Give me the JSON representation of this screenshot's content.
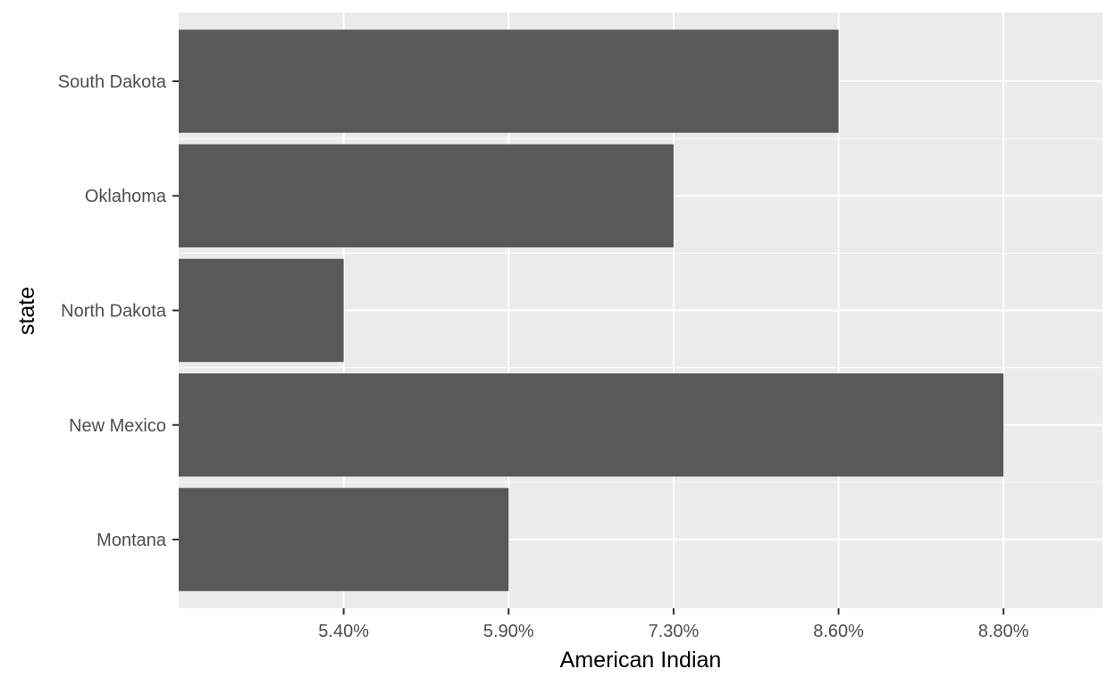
{
  "chart_data": {
    "type": "bar",
    "orientation": "horizontal",
    "categories": [
      "Montana",
      "New Mexico",
      "North Dakota",
      "Oklahoma",
      "South Dakota"
    ],
    "value_labels": [
      "5.90%",
      "8.80%",
      "5.40%",
      "7.30%",
      "8.60%"
    ],
    "x_tick_labels": [
      "5.40%",
      "5.90%",
      "7.30%",
      "8.60%",
      "8.80%"
    ],
    "xlabel": "American Indian",
    "ylabel": "state",
    "grid": true,
    "x_axis_note": "discrete axis of percentage strings, ordered alphabetically",
    "colors": {
      "panel": "#ebebeb",
      "gridline": "#ffffff",
      "bar": "#595959",
      "tick": "#333333",
      "tick_text": "#4d4d4d",
      "title_text": "#000000"
    }
  }
}
